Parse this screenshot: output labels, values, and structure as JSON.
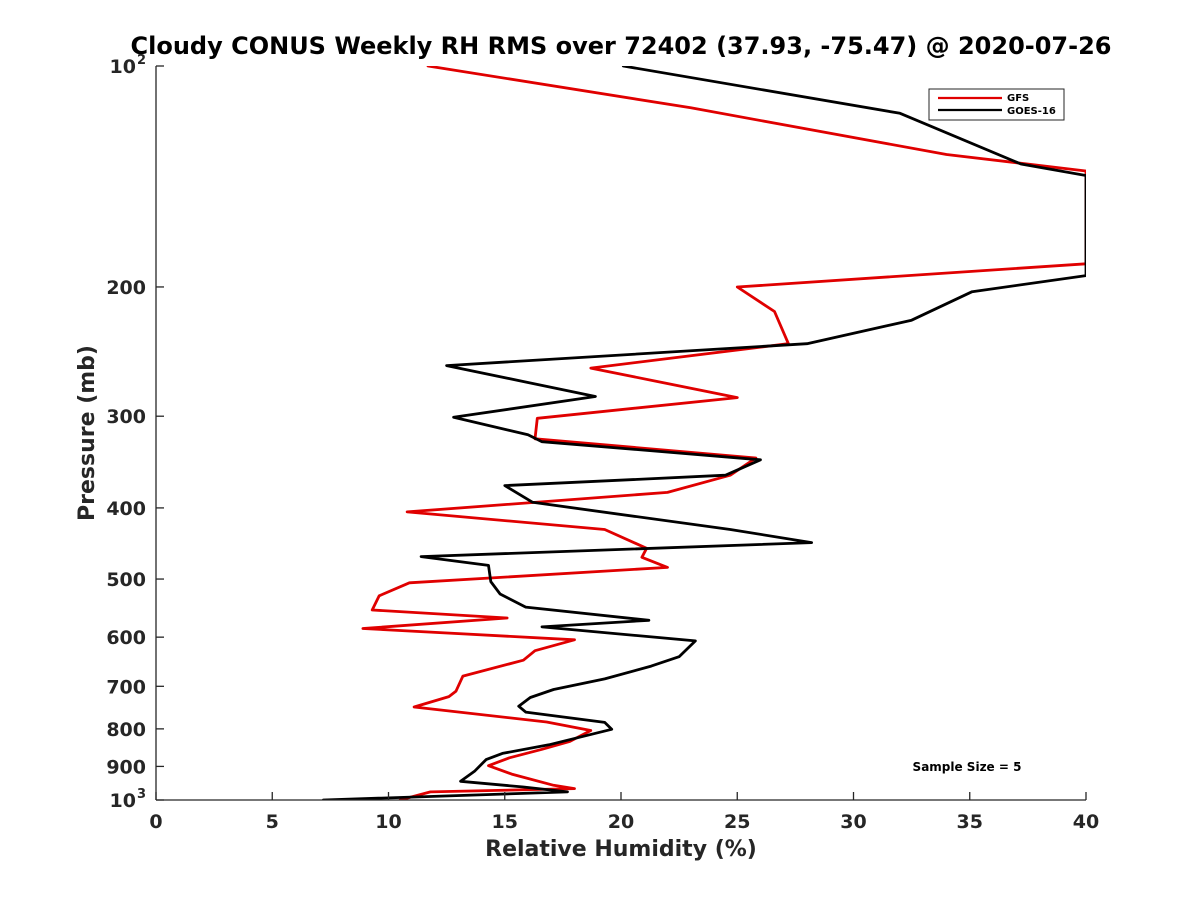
{
  "chart_data": {
    "type": "line",
    "title": "Cloudy CONUS Weekly RH RMS over 72402 (37.93, -75.47) @ 2020-07-26",
    "xlabel": "Relative Humidity (%)",
    "ylabel": "Pressure (mb)",
    "xlim": [
      0,
      40
    ],
    "ylim": [
      100,
      1000
    ],
    "y_scale": "log",
    "y_reversed": true,
    "x_ticks": [
      0,
      5,
      10,
      15,
      20,
      25,
      30,
      35,
      40
    ],
    "y_ticks": [
      {
        "value": 100,
        "label": "10",
        "exp": "2"
      },
      {
        "value": 200,
        "label": "200"
      },
      {
        "value": 300,
        "label": "300"
      },
      {
        "value": 400,
        "label": "400"
      },
      {
        "value": 500,
        "label": "500"
      },
      {
        "value": 600,
        "label": "600"
      },
      {
        "value": 700,
        "label": "700"
      },
      {
        "value": 800,
        "label": "800"
      },
      {
        "value": 900,
        "label": "900"
      },
      {
        "value": 1000,
        "label": "10",
        "exp": "3"
      }
    ],
    "grid": false,
    "legend_position": "top-right",
    "annotation": "Sample Size = 5",
    "series": [
      {
        "name": "GFS",
        "color": "#e00000",
        "points": [
          [
            11.7,
            100
          ],
          [
            23,
            114
          ],
          [
            34,
            132
          ],
          [
            40,
            139
          ],
          [
            40,
            186
          ],
          [
            25,
            200
          ],
          [
            26.6,
            216
          ],
          [
            27.2,
            239
          ],
          [
            18.7,
            258
          ],
          [
            25,
            283
          ],
          [
            16.4,
            302
          ],
          [
            16.3,
            322
          ],
          [
            25.8,
            342
          ],
          [
            24.7,
            361
          ],
          [
            22,
            381
          ],
          [
            10.8,
            405
          ],
          [
            19.3,
            428
          ],
          [
            21.1,
            454
          ],
          [
            20.9,
            467
          ],
          [
            22,
            482
          ],
          [
            10.9,
            506
          ],
          [
            9.6,
            527
          ],
          [
            9.3,
            551
          ],
          [
            15.1,
            565
          ],
          [
            8.9,
            584
          ],
          [
            18,
            605
          ],
          [
            16.3,
            626
          ],
          [
            15.8,
            645
          ],
          [
            13.2,
            678
          ],
          [
            12.9,
            711
          ],
          [
            12.6,
            723
          ],
          [
            11.1,
            747
          ],
          [
            16.8,
            783
          ],
          [
            18.7,
            804
          ],
          [
            17.8,
            832
          ],
          [
            16.6,
            853
          ],
          [
            15.2,
            876
          ],
          [
            14.3,
            898
          ],
          [
            15.3,
            922
          ],
          [
            17.1,
            955
          ],
          [
            18,
            965
          ],
          [
            11.8,
            975
          ],
          [
            10.5,
            1000
          ]
        ]
      },
      {
        "name": "GOES-16",
        "color": "#000000",
        "points": [
          [
            20.1,
            100
          ],
          [
            32,
            116
          ],
          [
            37.2,
            136
          ],
          [
            40,
            141
          ],
          [
            40,
            193
          ],
          [
            35.1,
            203
          ],
          [
            32.5,
            222
          ],
          [
            28,
            239
          ],
          [
            12.5,
            256
          ],
          [
            18.9,
            282
          ],
          [
            12.8,
            301
          ],
          [
            16,
            318
          ],
          [
            16.6,
            325
          ],
          [
            26,
            344
          ],
          [
            24.5,
            361
          ],
          [
            15,
            373
          ],
          [
            16.2,
            393
          ],
          [
            24.7,
            428
          ],
          [
            28.2,
            446
          ],
          [
            11.4,
            466
          ],
          [
            14.3,
            479
          ],
          [
            14.4,
            504
          ],
          [
            14.8,
            524
          ],
          [
            15.9,
            546
          ],
          [
            21.2,
            569
          ],
          [
            16.6,
            581
          ],
          [
            23.2,
            607
          ],
          [
            22.5,
            638
          ],
          [
            21.3,
            657
          ],
          [
            19.3,
            684
          ],
          [
            17.1,
            707
          ],
          [
            16.1,
            725
          ],
          [
            15.6,
            745
          ],
          [
            15.9,
            759
          ],
          [
            19.3,
            784
          ],
          [
            19.6,
            801
          ],
          [
            16.9,
            841
          ],
          [
            14.9,
            864
          ],
          [
            14.2,
            881
          ],
          [
            13.7,
            914
          ],
          [
            13.1,
            943
          ],
          [
            15.8,
            960
          ],
          [
            17.7,
            975
          ],
          [
            7.2,
            1000
          ]
        ]
      }
    ]
  }
}
